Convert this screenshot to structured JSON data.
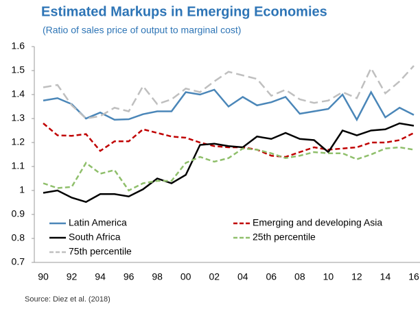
{
  "chart_data": {
    "type": "line",
    "title": "Estimated Markups in Emerging Economies",
    "subtitle": "(Ratio of sales price of output to marginal cost)",
    "source": "Source: Diez et al. (2018)",
    "categories": [
      "90",
      null,
      "92",
      null,
      "94",
      null,
      "96",
      null,
      "98",
      null,
      "00",
      null,
      "02",
      null,
      "04",
      null,
      "06",
      null,
      "08",
      null,
      "10",
      null,
      "12",
      null,
      "14",
      null,
      "16"
    ],
    "ylim": [
      0.7,
      1.6
    ],
    "yticks": [
      0.7,
      0.8,
      0.9,
      1,
      1.1,
      1.2,
      1.3,
      1.4,
      1.5,
      1.6
    ],
    "series": [
      {
        "name": "Latin America",
        "color": "#4a86b8",
        "dashed": false,
        "values": [
          1.375,
          1.385,
          1.36,
          1.3,
          1.325,
          1.295,
          1.297,
          1.318,
          1.33,
          1.33,
          1.41,
          1.4,
          1.42,
          1.35,
          1.39,
          1.355,
          1.368,
          1.39,
          1.32,
          1.33,
          1.34,
          1.4,
          1.295,
          1.41,
          1.305,
          1.345,
          1.315
        ]
      },
      {
        "name": "Emerging and developing Asia",
        "color": "#c00000",
        "dashed": true,
        "values": [
          1.28,
          1.23,
          1.228,
          1.235,
          1.165,
          1.205,
          1.205,
          1.255,
          1.24,
          1.225,
          1.22,
          1.2,
          1.185,
          1.18,
          1.18,
          1.17,
          1.145,
          1.14,
          1.16,
          1.18,
          1.17,
          1.175,
          1.18,
          1.2,
          1.2,
          1.21,
          1.24
        ]
      },
      {
        "name": "South Africa",
        "color": "#000000",
        "dashed": false,
        "values": [
          0.99,
          1.0,
          0.97,
          0.952,
          0.985,
          0.985,
          0.975,
          1.005,
          1.05,
          1.03,
          1.065,
          1.19,
          1.195,
          1.185,
          1.18,
          1.225,
          1.215,
          1.24,
          1.215,
          1.21,
          1.16,
          1.25,
          1.23,
          1.25,
          1.255,
          1.28,
          1.27
        ]
      },
      {
        "name": "25th percentile",
        "color": "#8fbf6b",
        "dashed": true,
        "values": [
          1.03,
          1.01,
          1.015,
          1.115,
          1.07,
          1.085,
          1.0,
          1.03,
          1.04,
          1.04,
          1.115,
          1.14,
          1.12,
          1.135,
          1.175,
          1.17,
          1.155,
          1.135,
          1.145,
          1.16,
          1.155,
          1.155,
          1.13,
          1.15,
          1.175,
          1.18,
          1.17
        ]
      },
      {
        "name": "75th percentile",
        "color": "#bfbfbf",
        "dashed": true,
        "values": [
          1.43,
          1.44,
          1.355,
          1.3,
          1.31,
          1.345,
          1.33,
          1.435,
          1.36,
          1.38,
          1.425,
          1.41,
          1.455,
          1.495,
          1.48,
          1.465,
          1.395,
          1.42,
          1.38,
          1.365,
          1.375,
          1.41,
          1.385,
          1.51,
          1.405,
          1.455,
          1.52
        ]
      }
    ]
  }
}
